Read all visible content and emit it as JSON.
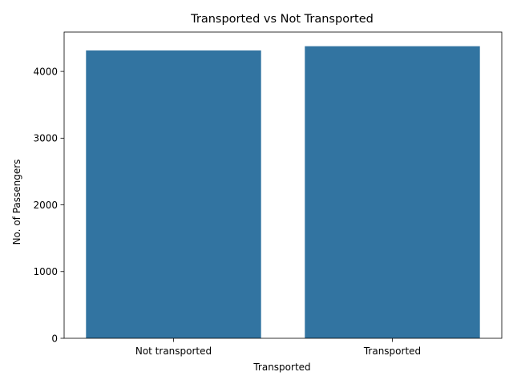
{
  "chart_data": {
    "type": "bar",
    "title": "Transported vs Not Transported",
    "xlabel": "Transported",
    "ylabel": "No. of Passengers",
    "categories": [
      "Not transported",
      "Transported"
    ],
    "values": [
      4315,
      4378
    ],
    "ylim": [
      0,
      4590
    ],
    "yticks": [
      0,
      1000,
      2000,
      3000,
      4000
    ],
    "grid": false,
    "legend": "none",
    "bar_color": "#3274a1"
  }
}
